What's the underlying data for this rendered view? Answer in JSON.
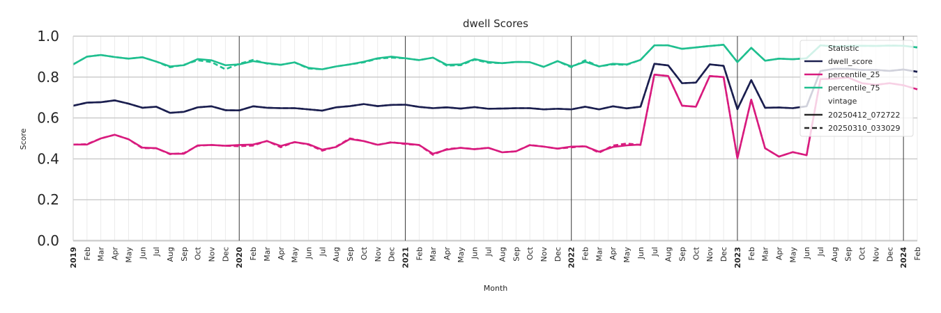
{
  "chart_data": {
    "type": "line",
    "title": "dwell Scores",
    "xlabel": "Month",
    "ylabel": "Score",
    "ylim": [
      0,
      1
    ],
    "yticks": [
      "0.0",
      "0.2",
      "0.4",
      "0.6",
      "0.8",
      "1.0"
    ],
    "grid": true,
    "legend_position": "top-right",
    "x": [
      "2019-01",
      "2019-02",
      "2019-03",
      "2019-04",
      "2019-05",
      "2019-06",
      "2019-07",
      "2019-08",
      "2019-09",
      "2019-10",
      "2019-11",
      "2019-12",
      "2020-01",
      "2020-02",
      "2020-03",
      "2020-04",
      "2020-05",
      "2020-06",
      "2020-07",
      "2020-08",
      "2020-09",
      "2020-10",
      "2020-11",
      "2020-12",
      "2021-01",
      "2021-02",
      "2021-03",
      "2021-04",
      "2021-05",
      "2021-06",
      "2021-07",
      "2021-08",
      "2021-09",
      "2021-10",
      "2021-11",
      "2021-12",
      "2022-01",
      "2022-02",
      "2022-03",
      "2022-04",
      "2022-05",
      "2022-06",
      "2022-07",
      "2022-08",
      "2022-09",
      "2022-10",
      "2022-11",
      "2022-12",
      "2023-01",
      "2023-02",
      "2023-03",
      "2023-04",
      "2023-05",
      "2023-06",
      "2023-07",
      "2023-08",
      "2023-09",
      "2023-10",
      "2023-11",
      "2023-12",
      "2024-01",
      "2024-02"
    ],
    "xtick_labels": [
      "2019",
      "Feb",
      "Mar",
      "Apr",
      "May",
      "Jun",
      "Jul",
      "Aug",
      "Sep",
      "Oct",
      "Nov",
      "Dec",
      "2020",
      "Feb",
      "Mar",
      "Apr",
      "May",
      "Jun",
      "Jul",
      "Aug",
      "Sep",
      "Oct",
      "Nov",
      "Dec",
      "2021",
      "Feb",
      "Mar",
      "Apr",
      "May",
      "Jun",
      "Jul",
      "Aug",
      "Sep",
      "Oct",
      "Nov",
      "Dec",
      "2022",
      "Feb",
      "Mar",
      "Apr",
      "May",
      "Jun",
      "Jul",
      "Aug",
      "Sep",
      "Oct",
      "Nov",
      "Dec",
      "2023",
      "Feb",
      "Mar",
      "Apr",
      "May",
      "Jun",
      "Jul",
      "Aug",
      "Sep",
      "Oct",
      "Nov",
      "Dec",
      "2024",
      "Feb"
    ],
    "series": [
      {
        "name": "dwell_score",
        "vintage": "20250412_072722",
        "color": "#1b1f4f",
        "style": "solid",
        "values": [
          0.66,
          0.675,
          0.677,
          0.686,
          0.67,
          0.65,
          0.655,
          0.625,
          0.63,
          0.652,
          0.657,
          0.638,
          0.637,
          0.657,
          0.65,
          0.648,
          0.648,
          0.642,
          0.636,
          0.652,
          0.658,
          0.668,
          0.658,
          0.664,
          0.665,
          0.654,
          0.648,
          0.652,
          0.646,
          0.653,
          0.645,
          0.646,
          0.648,
          0.648,
          0.642,
          0.645,
          0.642,
          0.655,
          0.642,
          0.657,
          0.647,
          0.655,
          0.865,
          0.857,
          0.77,
          0.773,
          0.862,
          0.855,
          0.643,
          0.785,
          0.65,
          0.651,
          0.648,
          0.657,
          0.83,
          0.84,
          0.84,
          0.835,
          0.835,
          0.83,
          0.837,
          0.826
        ]
      },
      {
        "name": "dwell_score",
        "vintage": "20250310_033029",
        "color": "#1b1f4f",
        "style": "dashed",
        "values": [
          0.66,
          0.675,
          0.677,
          0.686,
          0.67,
          0.65,
          0.655,
          0.625,
          0.63,
          0.652,
          0.657,
          0.638,
          0.637,
          0.657,
          0.65,
          0.648,
          0.648,
          0.642,
          0.636,
          0.652,
          0.658,
          0.668,
          0.658,
          0.664,
          0.665,
          0.654,
          0.648,
          0.652,
          0.646,
          0.653,
          0.645,
          0.646,
          0.648,
          0.648,
          0.642,
          0.645,
          0.642,
          0.655,
          0.642,
          0.657,
          0.647,
          0.655,
          0.865,
          0.857,
          0.77,
          0.773,
          0.862,
          0.855,
          0.643,
          0.785,
          0.65,
          0.651,
          0.648,
          0.657,
          0.83,
          0.84,
          0.84,
          0.835,
          0.835,
          0.83,
          0.837,
          0.826
        ]
      },
      {
        "name": "percentile_25",
        "vintage": "20250412_072722",
        "color": "#d81b7e",
        "style": "solid",
        "values": [
          0.47,
          0.47,
          0.5,
          0.518,
          0.496,
          0.455,
          0.452,
          0.425,
          0.425,
          0.466,
          0.468,
          0.464,
          0.468,
          0.47,
          0.487,
          0.463,
          0.482,
          0.472,
          0.445,
          0.458,
          0.497,
          0.487,
          0.469,
          0.48,
          0.475,
          0.468,
          0.425,
          0.445,
          0.454,
          0.447,
          0.454,
          0.432,
          0.437,
          0.467,
          0.46,
          0.45,
          0.46,
          0.461,
          0.435,
          0.458,
          0.466,
          0.47,
          0.812,
          0.805,
          0.66,
          0.655,
          0.805,
          0.8,
          0.403,
          0.69,
          0.452,
          0.411,
          0.433,
          0.418,
          0.79,
          0.792,
          0.798,
          0.77,
          0.762,
          0.77,
          0.76,
          0.74
        ]
      },
      {
        "name": "percentile_25",
        "vintage": "20250310_033029",
        "color": "#d81b7e",
        "style": "dashed",
        "values": [
          0.47,
          0.472,
          0.5,
          0.518,
          0.496,
          0.452,
          0.452,
          0.423,
          0.428,
          0.464,
          0.468,
          0.464,
          0.462,
          0.465,
          0.488,
          0.457,
          0.482,
          0.47,
          0.44,
          0.46,
          0.5,
          0.487,
          0.468,
          0.482,
          0.472,
          0.468,
          0.42,
          0.448,
          0.454,
          0.448,
          0.454,
          0.432,
          0.437,
          0.468,
          0.46,
          0.45,
          0.456,
          0.463,
          0.43,
          0.465,
          0.475,
          0.468,
          0.812,
          0.805,
          0.66,
          0.655,
          0.805,
          0.8,
          0.403,
          0.69,
          0.452,
          0.411,
          0.433,
          0.418,
          0.79,
          0.792,
          0.798,
          0.77,
          0.762,
          0.77,
          0.76,
          0.74
        ]
      },
      {
        "name": "percentile_75",
        "vintage": "20250412_072722",
        "color": "#1fbf8f",
        "style": "solid",
        "values": [
          0.862,
          0.9,
          0.908,
          0.898,
          0.89,
          0.897,
          0.876,
          0.852,
          0.858,
          0.888,
          0.882,
          0.858,
          0.862,
          0.878,
          0.868,
          0.86,
          0.872,
          0.845,
          0.838,
          0.852,
          0.862,
          0.875,
          0.892,
          0.9,
          0.892,
          0.883,
          0.895,
          0.86,
          0.862,
          0.888,
          0.874,
          0.868,
          0.874,
          0.873,
          0.85,
          0.878,
          0.852,
          0.875,
          0.852,
          0.865,
          0.862,
          0.884,
          0.955,
          0.955,
          0.938,
          0.945,
          0.952,
          0.958,
          0.873,
          0.943,
          0.88,
          0.89,
          0.887,
          0.892,
          0.955,
          0.95,
          0.952,
          0.953,
          0.952,
          0.954,
          0.953,
          0.945
        ]
      },
      {
        "name": "percentile_75",
        "vintage": "20250310_033029",
        "color": "#1fbf8f",
        "style": "dashed",
        "values": [
          0.862,
          0.9,
          0.908,
          0.898,
          0.89,
          0.897,
          0.876,
          0.848,
          0.86,
          0.882,
          0.873,
          0.838,
          0.865,
          0.884,
          0.866,
          0.86,
          0.872,
          0.842,
          0.838,
          0.852,
          0.862,
          0.872,
          0.89,
          0.895,
          0.892,
          0.883,
          0.895,
          0.856,
          0.858,
          0.885,
          0.87,
          0.868,
          0.874,
          0.873,
          0.85,
          0.878,
          0.848,
          0.882,
          0.852,
          0.862,
          0.86,
          0.884,
          0.955,
          0.955,
          0.938,
          0.945,
          0.952,
          0.958,
          0.873,
          0.943,
          0.88,
          0.89,
          0.887,
          0.892,
          0.955,
          0.95,
          0.952,
          0.953,
          0.952,
          0.954,
          0.953,
          0.945
        ]
      }
    ],
    "legend": {
      "title": "Statistic",
      "statistic_entries": [
        {
          "label": "dwell_score",
          "color": "#1b1f4f"
        },
        {
          "label": "percentile_25",
          "color": "#d81b7e"
        },
        {
          "label": "percentile_75",
          "color": "#1fbf8f"
        }
      ],
      "vintage_title": "vintage",
      "vintage_entries": [
        {
          "label": "20250412_072722",
          "style": "solid"
        },
        {
          "label": "20250310_033029",
          "style": "dashed"
        }
      ]
    }
  }
}
